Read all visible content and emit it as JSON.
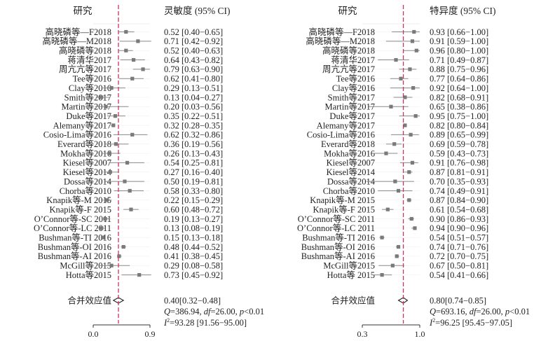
{
  "chart_data": [
    {
      "type": "forest",
      "panel": "sensitivity",
      "header_study": "研究",
      "header_value": "灵敏度 (95% CI)",
      "xlim": [
        0.0,
        0.9
      ],
      "xticks": [
        "0.0",
        "0.9"
      ],
      "reference_line": 0.4,
      "studies": [
        {
          "label": "高晓磷等—F2018",
          "est": 0.52,
          "lo": 0.4,
          "hi": 0.65,
          "text": "0.52 [0.40−0.65]"
        },
        {
          "label": "高晓磷等—M2018",
          "est": 0.71,
          "lo": 0.42,
          "hi": 0.92,
          "text": "0.71 [0.42−0.92]"
        },
        {
          "label": "高晓磷等2018",
          "est": 0.52,
          "lo": 0.4,
          "hi": 0.63,
          "text": "0.52 [0.40−0.63]"
        },
        {
          "label": "蒋清华2017",
          "est": 0.64,
          "lo": 0.43,
          "hi": 0.82,
          "text": "0.64 [0.43−0.82]"
        },
        {
          "label": "周亢亢等2017",
          "est": 0.79,
          "lo": 0.63,
          "hi": 0.9,
          "text": "0.79 [0.63−0.90]"
        },
        {
          "label": "Tee等2016",
          "est": 0.62,
          "lo": 0.41,
          "hi": 0.8,
          "text": "0.62 [0.41−0.80]"
        },
        {
          "label": "Clay等2016",
          "est": 0.29,
          "lo": 0.13,
          "hi": 0.51,
          "text": "0.29 [0.13−0.51]"
        },
        {
          "label": "Smith等2017",
          "est": 0.13,
          "lo": 0.04,
          "hi": 0.27,
          "text": "0.13 [0.04−0.27]"
        },
        {
          "label": "Martin等2017",
          "est": 0.2,
          "lo": 0.03,
          "hi": 0.56,
          "text": "0.20 [0.03−0.56]"
        },
        {
          "label": "Duke等2017",
          "est": 0.35,
          "lo": 0.22,
          "hi": 0.51,
          "text": "0.35 [0.22−0.51]"
        },
        {
          "label": "Alemany等2017",
          "est": 0.32,
          "lo": 0.28,
          "hi": 0.35,
          "text": "0.32 [0.28−0.35]"
        },
        {
          "label": "Cosio-Lima等2016",
          "est": 0.62,
          "lo": 0.32,
          "hi": 0.86,
          "text": "0.62 [0.32−0.86]"
        },
        {
          "label": "Everard等2018",
          "est": 0.36,
          "lo": 0.19,
          "hi": 0.56,
          "text": "0.36 [0.19−0.56]"
        },
        {
          "label": "Mokha等2016",
          "est": 0.26,
          "lo": 0.13,
          "hi": 0.43,
          "text": "0.26 [0.13−0.43]"
        },
        {
          "label": "Kiesel等2007",
          "est": 0.54,
          "lo": 0.25,
          "hi": 0.81,
          "text": "0.54 [0.25−0.81]"
        },
        {
          "label": "Kiesel等2014",
          "est": 0.27,
          "lo": 0.16,
          "hi": 0.4,
          "text": "0.27 [0.16−0.40]"
        },
        {
          "label": "Dossa等2014",
          "est": 0.5,
          "lo": 0.19,
          "hi": 0.81,
          "text": "0.50 [0.19−0.81]"
        },
        {
          "label": "Chorba等2010",
          "est": 0.58,
          "lo": 0.33,
          "hi": 0.8,
          "text": "0.58 [0.33−0.80]"
        },
        {
          "label": "Knapik等-M 2015",
          "est": 0.22,
          "lo": 0.15,
          "hi": 0.29,
          "text": "0.22 [0.15−0.29]"
        },
        {
          "label": "Knapik等-F 2015",
          "est": 0.6,
          "lo": 0.48,
          "hi": 0.72,
          "text": "0.60 [0.48−0.72]"
        },
        {
          "label": "O’Connor等-SC 2011",
          "est": 0.19,
          "lo": 0.13,
          "hi": 0.27,
          "text": "0.19 [0.13−0.27]"
        },
        {
          "label": "O’Connor等-LC 2011",
          "est": 0.13,
          "lo": 0.08,
          "hi": 0.19,
          "text": "0.13 [0.08−0.19]"
        },
        {
          "label": "Bushman等-TI 2016",
          "est": 0.15,
          "lo": 0.13,
          "hi": 0.18,
          "text": "0.15 [0.13−0.18]"
        },
        {
          "label": "Bushman等-OI 2016",
          "est": 0.48,
          "lo": 0.44,
          "hi": 0.52,
          "text": "0.48 [0.44−0.52]"
        },
        {
          "label": "Bushman等-AI 2016",
          "est": 0.41,
          "lo": 0.38,
          "hi": 0.45,
          "text": "0.41 [0.38−0.45]"
        },
        {
          "label": "McGill等2015",
          "est": 0.29,
          "lo": 0.08,
          "hi": 0.58,
          "text": "0.29 [0.08−0.58]"
        },
        {
          "label": "Hotta等2015",
          "est": 0.73,
          "lo": 0.45,
          "hi": 0.92,
          "text": "0.73 [0.45−0.92]"
        }
      ],
      "pooled": {
        "label": "合并效应值",
        "est": 0.4,
        "lo": 0.32,
        "hi": 0.48,
        "text": "0.40[0.32−0.48]"
      },
      "stats": {
        "q_prefix": "Q",
        "q_value": "=386.94, ",
        "df_prefix": "df",
        "df_value": "=26.00, ",
        "p_prefix": "p",
        "p_value": "<0.01",
        "i2_prefix": "I",
        "i2_value": "=93.28 [91.56−95.00]"
      }
    },
    {
      "type": "forest",
      "panel": "specificity",
      "header_study": "研究",
      "header_value": "特异度 (95% CI)",
      "xlim": [
        0.3,
        1.0
      ],
      "xticks": [
        "0.3",
        "1.0"
      ],
      "reference_line": 0.8,
      "studies": [
        {
          "label": "高晓磷等—F2018",
          "est": 0.93,
          "lo": 0.66,
          "hi": 1.0,
          "text": "0.93 [0.66−1.00]"
        },
        {
          "label": "高晓磷等—M2018",
          "est": 0.91,
          "lo": 0.59,
          "hi": 1.0,
          "text": "0.91 [0.59−1.00]"
        },
        {
          "label": "高晓磷等2018",
          "est": 0.96,
          "lo": 0.8,
          "hi": 1.0,
          "text": "0.96 [0.80−1.00]"
        },
        {
          "label": "蒋清华2017",
          "est": 0.71,
          "lo": 0.49,
          "hi": 0.87,
          "text": "0.71 [0.49−0.87]"
        },
        {
          "label": "周亢亢等2017",
          "est": 0.88,
          "lo": 0.75,
          "hi": 0.96,
          "text": "0.88 [0.75−0.96]"
        },
        {
          "label": "Tee等2016",
          "est": 0.77,
          "lo": 0.64,
          "hi": 0.86,
          "text": "0.77 [0.64−0.86]"
        },
        {
          "label": "Clay等2016",
          "est": 0.92,
          "lo": 0.64,
          "hi": 1.0,
          "text": "0.92 [0.64−1.00]"
        },
        {
          "label": "Smith等2017",
          "est": 0.82,
          "lo": 0.68,
          "hi": 0.91,
          "text": "0.82 [0.68−0.91]"
        },
        {
          "label": "Martin等2017",
          "est": 0.65,
          "lo": 0.38,
          "hi": 0.86,
          "text": "0.65 [0.38−0.86]"
        },
        {
          "label": "Duke等2017",
          "est": 0.95,
          "lo": 0.75,
          "hi": 1.0,
          "text": "0.95 [0.75−1.00]"
        },
        {
          "label": "Alemany等2017",
          "est": 0.82,
          "lo": 0.8,
          "hi": 0.84,
          "text": "0.82 [0.80−0.84]"
        },
        {
          "label": "Cosio-Lima等2016",
          "est": 0.89,
          "lo": 0.65,
          "hi": 0.99,
          "text": "0.89 [0.65−0.99]"
        },
        {
          "label": "Everard等2018",
          "est": 0.69,
          "lo": 0.59,
          "hi": 0.78,
          "text": "0.69 [0.59−0.78]"
        },
        {
          "label": "Mokha等2016",
          "est": 0.59,
          "lo": 0.43,
          "hi": 0.73,
          "text": "0.59 [0.43−0.73]"
        },
        {
          "label": "Kiesel等2007",
          "est": 0.91,
          "lo": 0.76,
          "hi": 0.98,
          "text": "0.91 [0.76−0.98]"
        },
        {
          "label": "Kiesel等2014",
          "est": 0.87,
          "lo": 0.81,
          "hi": 0.91,
          "text": "0.87 [0.81−0.91]"
        },
        {
          "label": "Dossa等2014",
          "est": 0.7,
          "lo": 0.35,
          "hi": 0.93,
          "text": "0.70 [0.35−0.93]"
        },
        {
          "label": "Chorba等2010",
          "est": 0.74,
          "lo": 0.49,
          "hi": 0.91,
          "text": "0.74 [0.49−0.91]"
        },
        {
          "label": "Knapik等-M 2015",
          "est": 0.87,
          "lo": 0.84,
          "hi": 0.9,
          "text": "0.87 [0.84−0.90]"
        },
        {
          "label": "Knapik等-F 2015",
          "est": 0.61,
          "lo": 0.54,
          "hi": 0.68,
          "text": "0.61 [0.54−0.68]"
        },
        {
          "label": "O’Connor等-SC 2011",
          "est": 0.9,
          "lo": 0.86,
          "hi": 0.93,
          "text": "0.90 [0.86−0.93]"
        },
        {
          "label": "O’Connor等-LC 2011",
          "est": 0.94,
          "lo": 0.9,
          "hi": 0.96,
          "text": "0.94 [0.90−0.96]"
        },
        {
          "label": "Bushman等-TI 2016",
          "est": 0.54,
          "lo": 0.51,
          "hi": 0.57,
          "text": "0.54 [0.51−0.57]"
        },
        {
          "label": "Bushman等-OI 2016",
          "est": 0.74,
          "lo": 0.71,
          "hi": 0.76,
          "text": "0.74 [0.71−0.76]"
        },
        {
          "label": "Bushman等-AI 2016",
          "est": 0.72,
          "lo": 0.7,
          "hi": 0.75,
          "text": "0.72 [0.70−0.75]"
        },
        {
          "label": "McGill等2015",
          "est": 0.67,
          "lo": 0.5,
          "hi": 0.81,
          "text": "0.67 [0.50−0.81]"
        },
        {
          "label": "Hotta等 2015",
          "est": 0.54,
          "lo": 0.41,
          "hi": 0.66,
          "text": "0.54 [0.41−0.66]"
        }
      ],
      "pooled": {
        "label": "合并效应值",
        "est": 0.8,
        "lo": 0.74,
        "hi": 0.85,
        "text": "0.80[0.74−0.85]"
      },
      "stats": {
        "q_prefix": "Q",
        "q_value": "=693.16, ",
        "df_prefix": "df",
        "df_value": "=26.00, ",
        "p_prefix": "p",
        "p_value": "<0.01",
        "i2_prefix": "I",
        "i2_value": "=96.25 [95.45−97.05]"
      }
    }
  ],
  "colors": {
    "ink": "#222222",
    "marker": "#7a7a7a",
    "whisker": "#888888",
    "reference": "#d0335a",
    "axis": "#333333"
  }
}
